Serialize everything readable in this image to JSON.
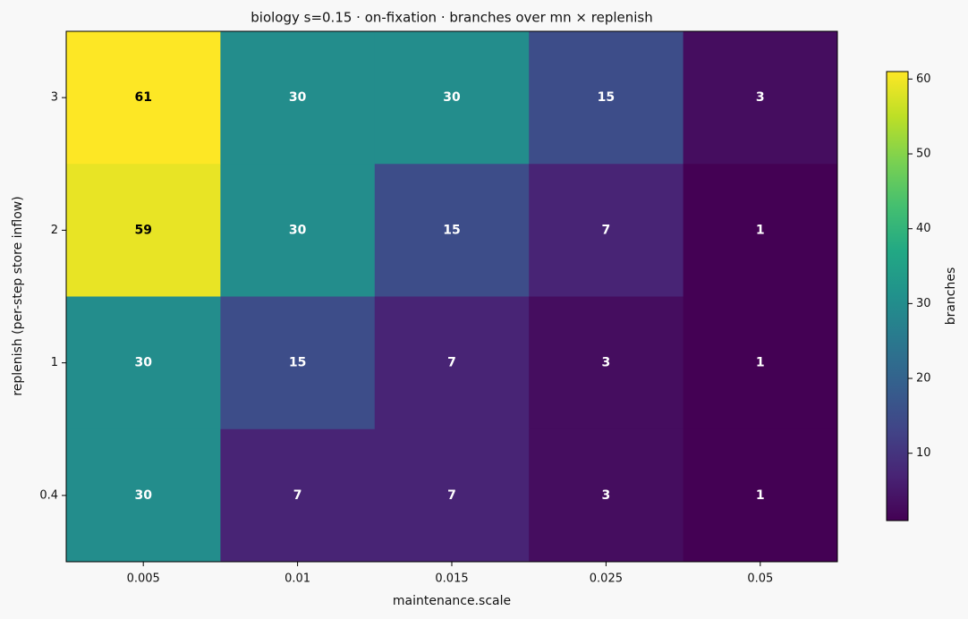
{
  "chart_data": {
    "type": "heatmap",
    "title": "biology s=0.15 · on-fixation · branches over mn × replenish",
    "x_label": "maintenance.scale",
    "y_label": "replenish (per-step store inflow)",
    "x_categories": [
      "0.005",
      "0.01",
      "0.015",
      "0.025",
      "0.05"
    ],
    "y_categories": [
      "3",
      "2",
      "1",
      "0.4"
    ],
    "values": [
      [
        61,
        30,
        30,
        15,
        3
      ],
      [
        59,
        30,
        15,
        7,
        1
      ],
      [
        30,
        15,
        7,
        3,
        1
      ],
      [
        30,
        7,
        7,
        3,
        1
      ]
    ],
    "cmap": "viridis",
    "colorbar_label": "branches",
    "colorbar_lim": [
      1,
      61
    ],
    "colorbar_ticks": [
      10,
      20,
      30,
      40,
      50,
      60
    ]
  }
}
